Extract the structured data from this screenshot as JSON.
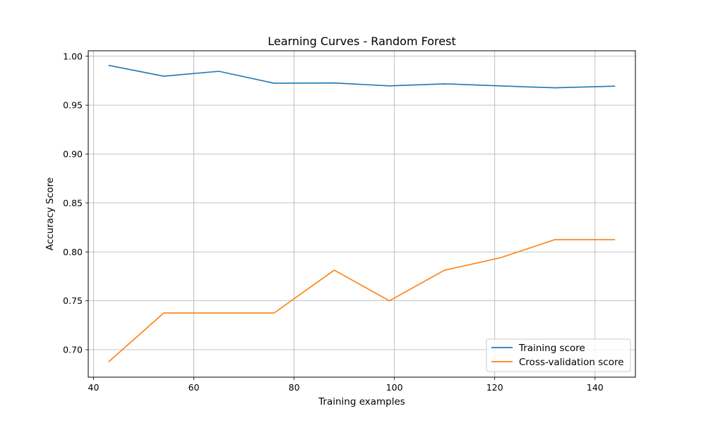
{
  "chart_data": {
    "type": "line",
    "title": "Learning Curves - Random Forest",
    "xlabel": "Training examples",
    "ylabel": "Accuracy Score",
    "xlim": [
      38.95,
      148.05
    ],
    "ylim": [
      0.6719,
      1.0056
    ],
    "xticks": [
      40,
      60,
      80,
      100,
      120,
      140
    ],
    "yticks": [
      0.7,
      0.75,
      0.8,
      0.85,
      0.9,
      0.95,
      1.0
    ],
    "xtick_labels": [
      "40",
      "60",
      "80",
      "100",
      "120",
      "140"
    ],
    "ytick_labels": [
      "0.70",
      "0.75",
      "0.80",
      "0.85",
      "0.90",
      "0.95",
      "1.00"
    ],
    "grid": true,
    "legend": "lower-right",
    "x": [
      43,
      54,
      65,
      76,
      88,
      99,
      110,
      121,
      132,
      144
    ],
    "series": [
      {
        "name": "Training score",
        "color": "#1f77b4",
        "values": [
          0.9907,
          0.9796,
          0.9846,
          0.9724,
          0.9727,
          0.9697,
          0.9718,
          0.9697,
          0.9677,
          0.9694
        ]
      },
      {
        "name": "Cross-validation score",
        "color": "#ff7f0e",
        "values": [
          0.6875,
          0.7375,
          0.7375,
          0.7375,
          0.7813,
          0.75,
          0.7813,
          0.7938,
          0.8125,
          0.8125
        ]
      }
    ]
  }
}
